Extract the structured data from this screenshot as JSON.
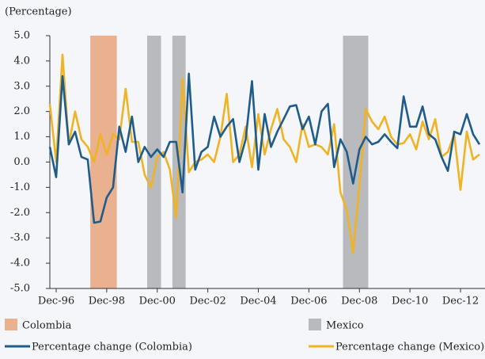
{
  "chart_data": {
    "type": "line",
    "y_axis_label": "(Percentage)",
    "categories": [
      null,
      "Dec-96",
      null,
      null,
      null,
      null,
      null,
      null,
      null,
      "Dec-98",
      null,
      null,
      null,
      null,
      null,
      null,
      null,
      "Dec-00",
      null,
      null,
      null,
      null,
      null,
      null,
      null,
      "Dec-02",
      null,
      null,
      null,
      null,
      null,
      null,
      null,
      "Dec-04",
      null,
      null,
      null,
      null,
      null,
      null,
      null,
      "Dec-06",
      null,
      null,
      null,
      null,
      null,
      null,
      null,
      "Dec-08",
      null,
      null,
      null,
      null,
      null,
      null,
      null,
      "Dec-10",
      null,
      null,
      null,
      null,
      null,
      null,
      null,
      "Dec-12",
      null,
      null,
      null
    ],
    "series": [
      {
        "name": "Percentage change (Colombia)",
        "color": "#1f5c8b",
        "values": [
          0.6,
          -0.6,
          3.4,
          0.7,
          1.2,
          0.2,
          0.1,
          -2.4,
          -2.35,
          -1.4,
          -1.0,
          1.4,
          0.4,
          1.8,
          0.0,
          0.6,
          0.2,
          0.5,
          0.2,
          0.8,
          0.8,
          -1.2,
          3.5,
          -0.3,
          0.4,
          0.6,
          1.8,
          1.0,
          1.4,
          1.7,
          0.0,
          0.9,
          3.2,
          -0.3,
          1.9,
          0.6,
          1.2,
          1.7,
          2.2,
          2.25,
          1.3,
          1.8,
          0.7,
          2.0,
          2.3,
          -0.2,
          0.9,
          0.4,
          -0.85,
          0.5,
          1.0,
          0.7,
          0.8,
          1.1,
          0.8,
          0.55,
          2.6,
          1.4,
          1.4,
          2.2,
          1.1,
          0.9,
          0.2,
          -0.35,
          1.2,
          1.1,
          1.9,
          1.1,
          0.7
        ]
      },
      {
        "name": "Percentage change (Mexico)",
        "color": "#f0b323",
        "values": [
          2.3,
          0.0,
          4.25,
          0.7,
          2.0,
          0.9,
          0.6,
          0.0,
          1.1,
          0.3,
          1.1,
          0.9,
          2.9,
          0.8,
          0.8,
          -0.5,
          -1.0,
          0.2,
          0.4,
          -0.3,
          -2.2,
          3.3,
          -0.4,
          0.0,
          0.1,
          0.3,
          0.0,
          1.0,
          2.7,
          0.0,
          0.3,
          1.4,
          -0.2,
          1.9,
          0.3,
          1.3,
          2.1,
          0.9,
          0.6,
          0.0,
          1.5,
          0.6,
          0.7,
          0.6,
          0.3,
          1.5,
          -1.2,
          -1.9,
          -3.6,
          -0.9,
          2.1,
          1.6,
          1.3,
          1.8,
          1.0,
          0.7,
          0.75,
          1.1,
          0.5,
          1.6,
          0.9,
          1.7,
          0.2,
          0.4,
          1.1,
          -1.1,
          1.2,
          0.1,
          0.3
        ]
      }
    ],
    "shaded_periods": [
      {
        "name": "Colombia",
        "color": "#e9b18f",
        "spans": [
          [
            6.4,
            10.6
          ]
        ]
      },
      {
        "name": "Mexico",
        "color": "#b8babe",
        "spans": [
          [
            15.4,
            17.6
          ],
          [
            19.4,
            21.5
          ],
          [
            46.4,
            50.4
          ]
        ]
      }
    ],
    "ylim": [
      -5,
      5
    ],
    "yticks": [
      {
        "value": 5,
        "label": "5.0"
      },
      {
        "value": 4,
        "label": "4.0"
      },
      {
        "value": 3,
        "label": "3.0"
      },
      {
        "value": 2,
        "label": "2.0"
      },
      {
        "value": 1,
        "label": "1.0"
      },
      {
        "value": 0,
        "label": "0.0"
      },
      {
        "value": -1,
        "label": "-1.0"
      },
      {
        "value": -2,
        "label": "-2.0"
      },
      {
        "value": -3,
        "label": "-3.0"
      },
      {
        "value": -4,
        "label": "-4.0"
      },
      {
        "value": -5,
        "label": "-5.0"
      }
    ],
    "grid": false
  }
}
